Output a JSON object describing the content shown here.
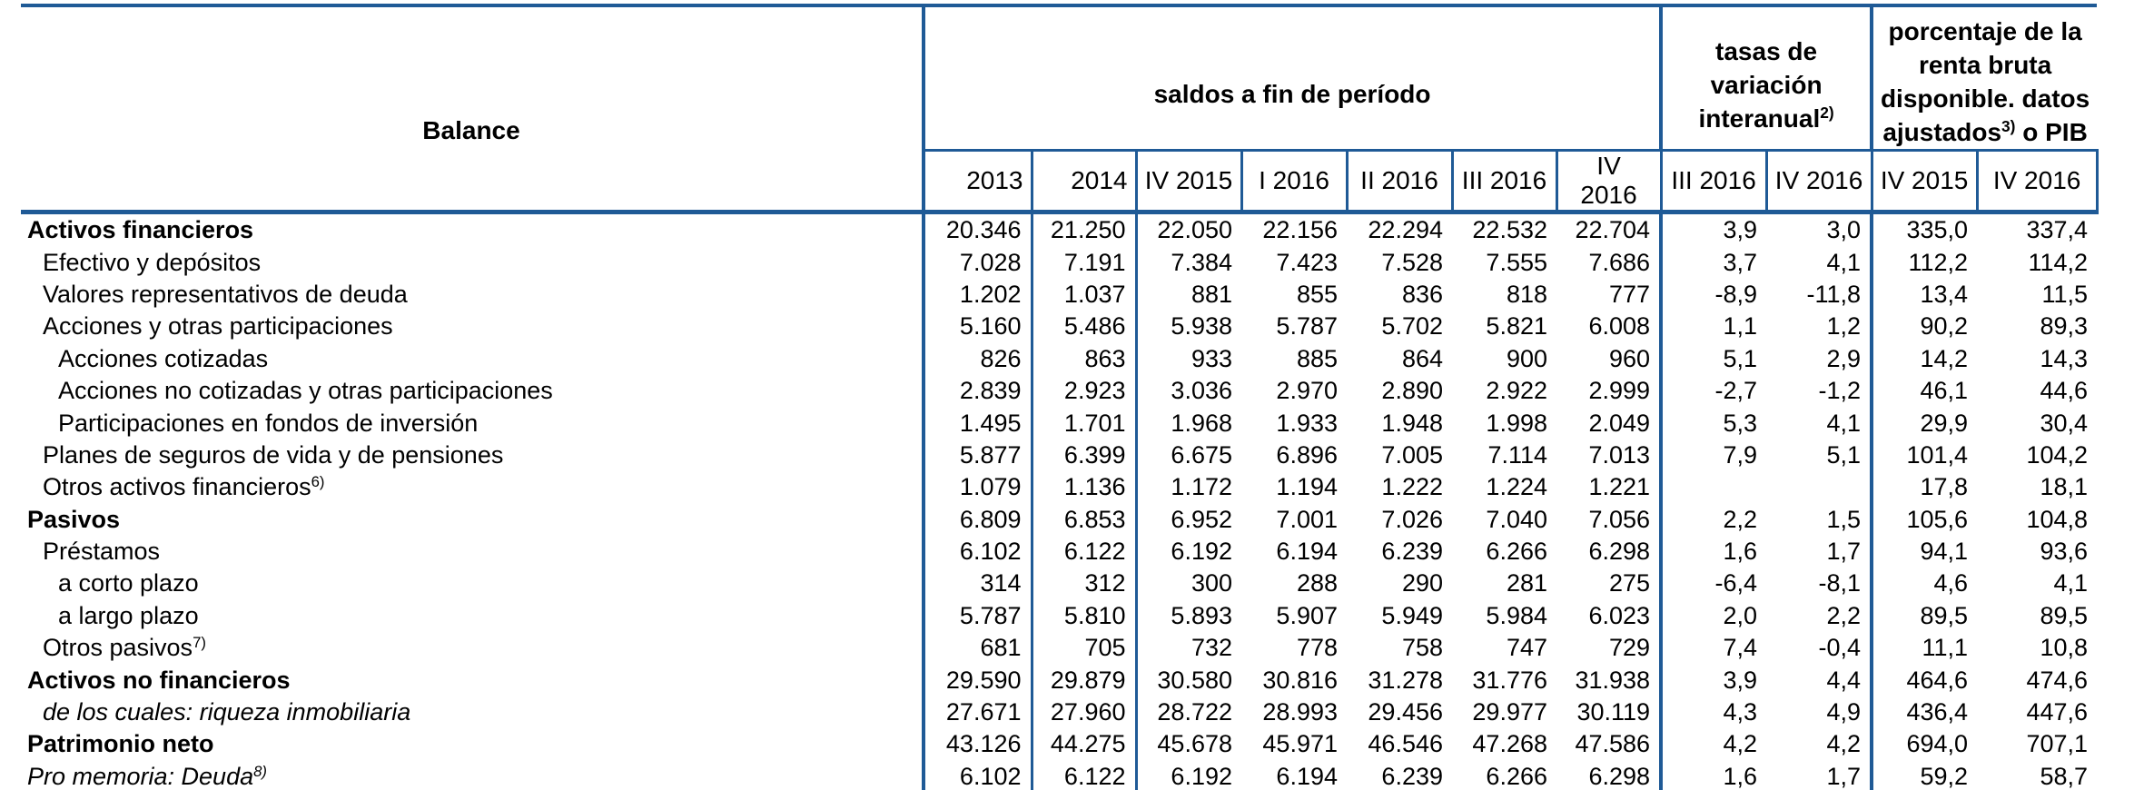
{
  "colors": {
    "border_blue": "#1f5a96",
    "text": "#000000",
    "background": "#ffffff"
  },
  "table": {
    "corner_label": "Balance",
    "groups": [
      {
        "id": "saldos",
        "label": "saldos a fin de período",
        "colspan": 7
      },
      {
        "id": "tasas",
        "label": "tasas de variación interanual^{2)}",
        "colspan": 2
      },
      {
        "id": "pct",
        "label": "porcentaje de la renta bruta disponible. datos ajustados^{3)} o PIB",
        "colspan": 2
      }
    ],
    "columns": [
      "2013",
      "2014",
      "IV 2015",
      "I 2016",
      "II 2016",
      "III 2016",
      "IV 2016",
      "III 2016",
      "IV 2016",
      "IV 2015",
      "IV 2016"
    ],
    "rows": [
      {
        "label": "Activos financieros",
        "bold": true,
        "italic": false,
        "indent": 0,
        "values": [
          "20.346",
          "21.250",
          "22.050",
          "22.156",
          "22.294",
          "22.532",
          "22.704",
          "3,9",
          "3,0",
          "335,0",
          "337,4"
        ]
      },
      {
        "label": "Efectivo y depósitos",
        "bold": false,
        "italic": false,
        "indent": 1,
        "values": [
          "7.028",
          "7.191",
          "7.384",
          "7.423",
          "7.528",
          "7.555",
          "7.686",
          "3,7",
          "4,1",
          "112,2",
          "114,2"
        ]
      },
      {
        "label": "Valores representativos de deuda",
        "bold": false,
        "italic": false,
        "indent": 1,
        "values": [
          "1.202",
          "1.037",
          "881",
          "855",
          "836",
          "818",
          "777",
          "-8,9",
          "-11,8",
          "13,4",
          "11,5"
        ]
      },
      {
        "label": "Acciones y otras participaciones",
        "bold": false,
        "italic": false,
        "indent": 1,
        "values": [
          "5.160",
          "5.486",
          "5.938",
          "5.787",
          "5.702",
          "5.821",
          "6.008",
          "1,1",
          "1,2",
          "90,2",
          "89,3"
        ]
      },
      {
        "label": "Acciones cotizadas",
        "bold": false,
        "italic": false,
        "indent": 2,
        "values": [
          "826",
          "863",
          "933",
          "885",
          "864",
          "900",
          "960",
          "5,1",
          "2,9",
          "14,2",
          "14,3"
        ]
      },
      {
        "label": "Acciones no cotizadas y otras participaciones",
        "bold": false,
        "italic": false,
        "indent": 2,
        "values": [
          "2.839",
          "2.923",
          "3.036",
          "2.970",
          "2.890",
          "2.922",
          "2.999",
          "-2,7",
          "-1,2",
          "46,1",
          "44,6"
        ]
      },
      {
        "label": "Participaciones en fondos de inversión",
        "bold": false,
        "italic": false,
        "indent": 2,
        "values": [
          "1.495",
          "1.701",
          "1.968",
          "1.933",
          "1.948",
          "1.998",
          "2.049",
          "5,3",
          "4,1",
          "29,9",
          "30,4"
        ]
      },
      {
        "label": "Planes de seguros de vida y de pensiones",
        "bold": false,
        "italic": false,
        "indent": 1,
        "values": [
          "5.877",
          "6.399",
          "6.675",
          "6.896",
          "7.005",
          "7.114",
          "7.013",
          "7,9",
          "5,1",
          "101,4",
          "104,2"
        ]
      },
      {
        "label": "Otros activos financieros^{6)}",
        "bold": false,
        "italic": false,
        "indent": 1,
        "values": [
          "1.079",
          "1.136",
          "1.172",
          "1.194",
          "1.222",
          "1.224",
          "1.221",
          "",
          "",
          "17,8",
          "18,1"
        ]
      },
      {
        "label": "Pasivos",
        "bold": true,
        "italic": false,
        "indent": 0,
        "values": [
          "6.809",
          "6.853",
          "6.952",
          "7.001",
          "7.026",
          "7.040",
          "7.056",
          "2,2",
          "1,5",
          "105,6",
          "104,8"
        ]
      },
      {
        "label": "Préstamos",
        "bold": false,
        "italic": false,
        "indent": 1,
        "values": [
          "6.102",
          "6.122",
          "6.192",
          "6.194",
          "6.239",
          "6.266",
          "6.298",
          "1,6",
          "1,7",
          "94,1",
          "93,6"
        ]
      },
      {
        "label": "a corto plazo",
        "bold": false,
        "italic": false,
        "indent": 2,
        "values": [
          "314",
          "312",
          "300",
          "288",
          "290",
          "281",
          "275",
          "-6,4",
          "-8,1",
          "4,6",
          "4,1"
        ]
      },
      {
        "label": "a largo plazo",
        "bold": false,
        "italic": false,
        "indent": 2,
        "values": [
          "5.787",
          "5.810",
          "5.893",
          "5.907",
          "5.949",
          "5.984",
          "6.023",
          "2,0",
          "2,2",
          "89,5",
          "89,5"
        ]
      },
      {
        "label": "Otros pasivos^{7)}",
        "bold": false,
        "italic": false,
        "indent": 1,
        "values": [
          "681",
          "705",
          "732",
          "778",
          "758",
          "747",
          "729",
          "7,4",
          "-0,4",
          "11,1",
          "10,8"
        ]
      },
      {
        "label": "Activos no financieros",
        "bold": true,
        "italic": false,
        "indent": 0,
        "values": [
          "29.590",
          "29.879",
          "30.580",
          "30.816",
          "31.278",
          "31.776",
          "31.938",
          "3,9",
          "4,4",
          "464,6",
          "474,6"
        ]
      },
      {
        "label": "de los cuales: riqueza inmobiliaria",
        "bold": false,
        "italic": true,
        "indent": 1,
        "values": [
          "27.671",
          "27.960",
          "28.722",
          "28.993",
          "29.456",
          "29.977",
          "30.119",
          "4,3",
          "4,9",
          "436,4",
          "447,6"
        ]
      },
      {
        "label": "Patrimonio neto",
        "bold": true,
        "italic": false,
        "indent": 0,
        "values": [
          "43.126",
          "44.275",
          "45.678",
          "45.971",
          "46.546",
          "47.268",
          "47.586",
          "4,2",
          "4,2",
          "694,0",
          "707,1"
        ]
      },
      {
        "label": "Pro memoria: Deuda^{8)}",
        "bold": false,
        "italic": true,
        "indent": 0,
        "values": [
          "6.102",
          "6.122",
          "6.192",
          "6.194",
          "6.239",
          "6.266",
          "6.298",
          "1,6",
          "1,7",
          "59,2",
          "58,7"
        ]
      }
    ]
  }
}
